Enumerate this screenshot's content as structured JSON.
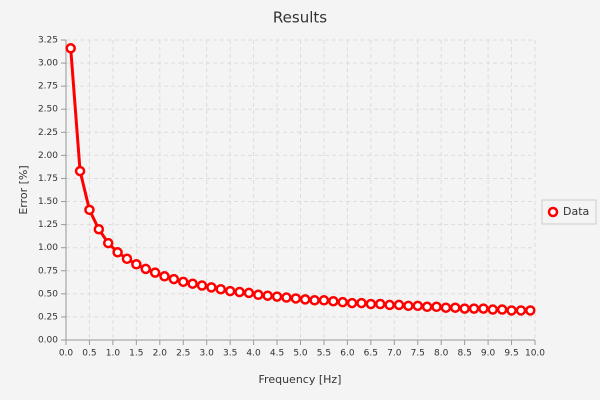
{
  "chart_data": {
    "type": "line",
    "title": "Results",
    "x_label": "Frequency [Hz]",
    "y_label": "Error [%]",
    "x": [
      0.1,
      0.3,
      0.5,
      0.7,
      0.9,
      1.1,
      1.3,
      1.5,
      1.7,
      1.9,
      2.1,
      2.3,
      2.5,
      2.7,
      2.9,
      3.1,
      3.3,
      3.5,
      3.7,
      3.9,
      4.1,
      4.3,
      4.5,
      4.7,
      4.9,
      5.1,
      5.3,
      5.5,
      5.7,
      5.9,
      6.1,
      6.3,
      6.5,
      6.7,
      6.9,
      7.1,
      7.3,
      7.5,
      7.7,
      7.9,
      8.1,
      8.3,
      8.5,
      8.7,
      8.9,
      9.1,
      9.3,
      9.5,
      9.7,
      9.9
    ],
    "series": [
      {
        "name": "Data",
        "color": "#ff0000",
        "values": [
          3.16,
          1.83,
          1.41,
          1.2,
          1.05,
          0.95,
          0.88,
          0.82,
          0.77,
          0.73,
          0.69,
          0.66,
          0.63,
          0.61,
          0.59,
          0.57,
          0.55,
          0.53,
          0.52,
          0.51,
          0.49,
          0.48,
          0.47,
          0.46,
          0.45,
          0.44,
          0.43,
          0.43,
          0.42,
          0.41,
          0.4,
          0.4,
          0.39,
          0.39,
          0.38,
          0.38,
          0.37,
          0.37,
          0.36,
          0.36,
          0.35,
          0.35,
          0.34,
          0.34,
          0.34,
          0.33,
          0.33,
          0.32,
          0.32,
          0.32
        ]
      }
    ],
    "xlim": [
      0,
      10
    ],
    "ylim": [
      0,
      3.25
    ],
    "xticks": [
      {
        "value": 0,
        "label": "0.0"
      },
      0.5,
      {
        "value": 1,
        "label": "1.0"
      },
      1.5,
      {
        "value": 2,
        "label": "2.0"
      },
      2.5,
      {
        "value": 3,
        "label": "3.0"
      },
      3.5,
      {
        "value": 4,
        "label": "4.0"
      },
      4.5,
      {
        "value": 5,
        "label": "5.0"
      },
      5.5,
      {
        "value": 6,
        "label": "6.0"
      },
      6.5,
      {
        "value": 7,
        "label": "7.0"
      },
      7.5,
      {
        "value": 8,
        "label": "8.0"
      },
      8.5,
      {
        "value": 9,
        "label": "9.0"
      },
      9.5,
      {
        "value": 10,
        "label": "10.0"
      }
    ],
    "yticks": [
      {
        "value": 0,
        "label": "0.00"
      },
      0.25,
      {
        "value": 0.5,
        "label": "0.50"
      },
      0.75,
      {
        "value": 1,
        "label": "1.00"
      },
      1.25,
      {
        "value": 1.5,
        "label": "1.50"
      },
      1.75,
      {
        "value": 2,
        "label": "2.00"
      },
      2.25,
      {
        "value": 2.5,
        "label": "2.50"
      },
      2.75,
      {
        "value": 3,
        "label": "3.00"
      },
      3.25
    ],
    "grid": true,
    "legend": "right"
  }
}
